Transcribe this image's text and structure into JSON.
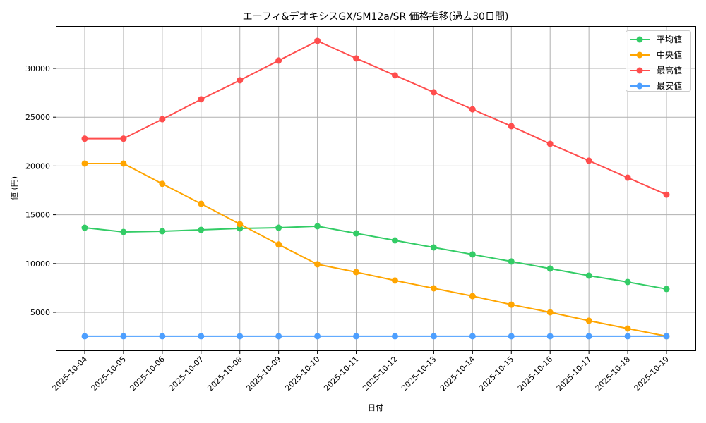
{
  "chart_data": {
    "type": "line",
    "title": "エーフィ&デオキシスGX/SM12a/SR 価格推移(過去30日間)",
    "xlabel": "日付",
    "ylabel": "値 (円)",
    "categories": [
      "2025-10-04",
      "2025-10-05",
      "2025-10-06",
      "2025-10-07",
      "2025-10-08",
      "2025-10-09",
      "2025-10-10",
      "2025-10-11",
      "2025-10-12",
      "2025-10-13",
      "2025-10-14",
      "2025-10-15",
      "2025-10-16",
      "2025-10-17",
      "2025-10-18",
      "2025-10-19"
    ],
    "yticks": [
      5000,
      10000,
      15000,
      20000,
      25000,
      30000
    ],
    "ylim": [
      1000,
      34200
    ],
    "grid": true,
    "legend_position": "upper right",
    "series": [
      {
        "name": "平均値",
        "color": "#33cc66",
        "values": [
          13670,
          13240,
          13310,
          13450,
          13600,
          13670,
          13820,
          13090,
          12370,
          11650,
          10930,
          10210,
          9480,
          8760,
          8110,
          7390
        ]
      },
      {
        "name": "中央値",
        "color": "#ffa500",
        "values": [
          20250,
          20250,
          18170,
          16130,
          14040,
          11950,
          9920,
          9120,
          8260,
          7460,
          6660,
          5790,
          5000,
          4140,
          3340,
          2550
        ]
      },
      {
        "name": "最高値",
        "color": "#ff4d4d",
        "values": [
          22800,
          22800,
          24790,
          26830,
          28780,
          30800,
          32820,
          31020,
          29290,
          27550,
          25800,
          24080,
          22270,
          20540,
          18800,
          17060
        ]
      },
      {
        "name": "最安値",
        "color": "#4d9fff",
        "values": [
          2550,
          2550,
          2550,
          2550,
          2550,
          2550,
          2550,
          2550,
          2550,
          2550,
          2550,
          2550,
          2550,
          2550,
          2550,
          2550
        ]
      }
    ]
  }
}
